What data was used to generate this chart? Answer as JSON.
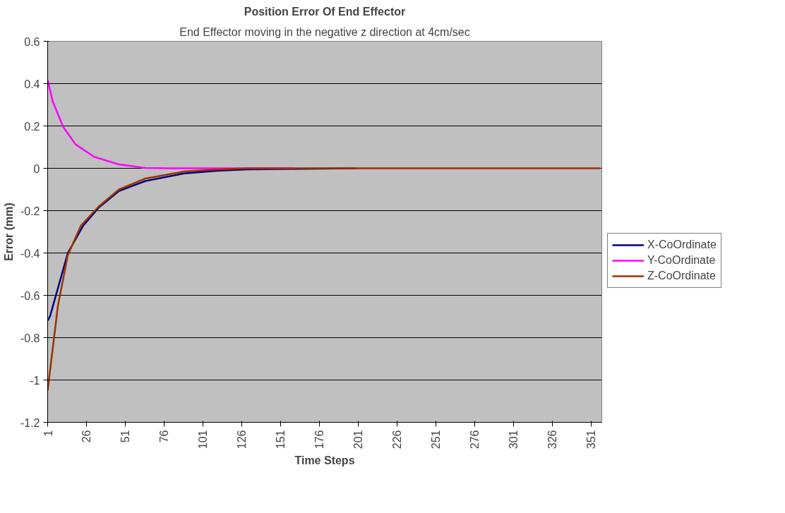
{
  "chart_data": {
    "type": "line",
    "title": "Position Error Of End Effector",
    "subtitle": "End Effector moving in the negative z direction at 4cm/sec",
    "xlabel": "Time Steps",
    "ylabel": "Error (mm)",
    "xlim": [
      1,
      358
    ],
    "xticks": [
      1,
      26,
      51,
      76,
      101,
      126,
      151,
      176,
      201,
      226,
      251,
      276,
      301,
      326,
      351
    ],
    "ylim": [
      -1.2,
      0.6
    ],
    "yticks": [
      -1.2,
      -1,
      -0.8,
      -0.6,
      -0.4,
      -0.2,
      0,
      0.2,
      0.4,
      0.6
    ],
    "grid": "y",
    "legend": "right",
    "marker": "none",
    "line_style": "solid",
    "series": [
      {
        "name": "X-CoOrdinate",
        "color": "#000080",
        "x": [
          1,
          2.5,
          14,
          24,
          34,
          47,
          64,
          89,
          110,
          130,
          200
        ],
        "values": [
          -0.72,
          -0.7,
          -0.4,
          -0.27,
          -0.185,
          -0.107,
          -0.06,
          -0.024,
          -0.012,
          -0.005,
          0
        ]
      },
      {
        "name": "Y-CoOrdinate",
        "color": "#ff00ff",
        "x": [
          1,
          4.3,
          11,
          19,
          31,
          47,
          64,
          80,
          110,
          130,
          160
        ],
        "values": [
          0.417,
          0.315,
          0.196,
          0.113,
          0.054,
          0.018,
          0.002,
          0,
          0,
          0,
          0
        ]
      },
      {
        "name": "Z-CoOrdinate",
        "color": "#993300",
        "x": [
          1,
          4.3,
          7.6,
          14,
          22.5,
          34,
          47,
          64,
          89,
          110,
          130,
          160,
          200,
          250,
          300,
          357
        ],
        "values": [
          -1.05,
          -0.85,
          -0.65,
          -0.41,
          -0.27,
          -0.18,
          -0.1,
          -0.048,
          -0.015,
          -0.006,
          0,
          0,
          0,
          0,
          0,
          0
        ]
      }
    ]
  }
}
